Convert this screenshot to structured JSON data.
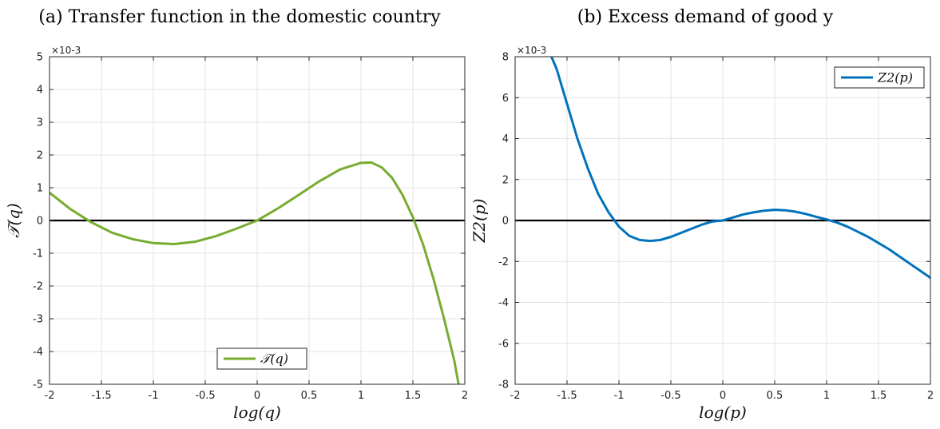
{
  "chart_data": [
    {
      "type": "line",
      "title": "(a) Transfer function in the domestic country",
      "xlabel": "log(q)",
      "ylabel": "𝒯(q)",
      "y_multiplier": "×10-3",
      "xlim": [
        -2,
        2
      ],
      "ylim": [
        -5,
        5
      ],
      "xticks": [
        -2,
        -1.5,
        -1,
        -0.5,
        0,
        0.5,
        1,
        1.5,
        2
      ],
      "yticks": [
        -5,
        -4,
        -3,
        -2,
        -1,
        0,
        1,
        2,
        3,
        4,
        5
      ],
      "xtick_labels": [
        "-2",
        "-1.5",
        "-1",
        "-0.5",
        "0",
        "0.5",
        "1",
        "1.5",
        "2"
      ],
      "ytick_labels": [
        "-5",
        "-4",
        "-3",
        "-2",
        "-1",
        "0",
        "1",
        "2",
        "3",
        "4",
        "5"
      ],
      "grid": true,
      "legend": "bottom-center",
      "zero_line": true,
      "series": [
        {
          "name": "𝒯(q)",
          "color": "#77ac30",
          "x": [
            -2.0,
            -1.8,
            -1.6,
            -1.4,
            -1.2,
            -1.0,
            -0.8,
            -0.6,
            -0.4,
            -0.2,
            0.0,
            0.2,
            0.4,
            0.6,
            0.8,
            1.0,
            1.1,
            1.2,
            1.3,
            1.4,
            1.5,
            1.6,
            1.7,
            1.8,
            1.9,
            1.94
          ],
          "values": [
            0.85,
            0.35,
            -0.05,
            -0.37,
            -0.57,
            -0.69,
            -0.72,
            -0.65,
            -0.48,
            -0.25,
            0.0,
            0.37,
            0.78,
            1.2,
            1.56,
            1.76,
            1.77,
            1.62,
            1.3,
            0.78,
            0.1,
            -0.75,
            -1.8,
            -3.0,
            -4.3,
            -5.0
          ]
        }
      ]
    },
    {
      "type": "line",
      "title": "(b) Excess demand of good y",
      "xlabel": "log(p)",
      "ylabel": "Z2(p)",
      "y_multiplier": "×10-3",
      "xlim": [
        -2,
        2
      ],
      "ylim": [
        -8,
        8
      ],
      "xticks": [
        -2,
        -1.5,
        -1,
        -0.5,
        0,
        0.5,
        1,
        1.5,
        2
      ],
      "yticks": [
        -8,
        -6,
        -4,
        -2,
        0,
        2,
        4,
        6,
        8
      ],
      "xtick_labels": [
        "-2",
        "-1.5",
        "-1",
        "-0.5",
        "0",
        "0.5",
        "1",
        "1.5",
        "2"
      ],
      "ytick_labels": [
        "-8",
        "-6",
        "-4",
        "-2",
        "0",
        "2",
        "4",
        "6",
        "8"
      ],
      "grid": true,
      "legend": "top-right",
      "zero_line": true,
      "series": [
        {
          "name": "Z2(p)",
          "color": "#0072bd",
          "x": [
            -1.65,
            -1.6,
            -1.5,
            -1.4,
            -1.3,
            -1.2,
            -1.1,
            -1.0,
            -0.9,
            -0.8,
            -0.7,
            -0.6,
            -0.5,
            -0.4,
            -0.3,
            -0.2,
            -0.1,
            0.0,
            0.1,
            0.2,
            0.3,
            0.4,
            0.5,
            0.6,
            0.7,
            0.8,
            0.9,
            1.0,
            1.1,
            1.2,
            1.3,
            1.4,
            1.5,
            1.6,
            1.7,
            1.8,
            1.9,
            2.0
          ],
          "values": [
            8.0,
            7.4,
            5.7,
            4.0,
            2.55,
            1.3,
            0.4,
            -0.3,
            -0.75,
            -0.95,
            -1.0,
            -0.95,
            -0.8,
            -0.6,
            -0.4,
            -0.2,
            -0.05,
            0.0,
            0.15,
            0.3,
            0.4,
            0.48,
            0.52,
            0.5,
            0.43,
            0.32,
            0.18,
            0.05,
            -0.1,
            -0.3,
            -0.55,
            -0.8,
            -1.1,
            -1.4,
            -1.75,
            -2.1,
            -2.45,
            -2.8
          ]
        }
      ]
    }
  ]
}
